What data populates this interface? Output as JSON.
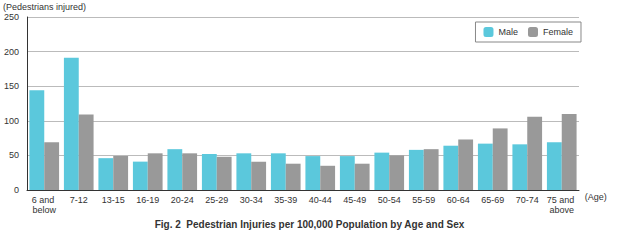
{
  "chart_data": {
    "type": "bar",
    "title": "Fig. 2  Pedestrian Injuries per 100,000 Population by Age and Sex",
    "x_label": "(Age)",
    "y_label": "(Pedestrians injured)",
    "categories": [
      "6 and below",
      "7-12",
      "13-15",
      "16-19",
      "20-24",
      "25-29",
      "30-34",
      "35-39",
      "40-44",
      "45-49",
      "50-54",
      "55-59",
      "60-64",
      "65-69",
      "70-74",
      "75 and above"
    ],
    "series": [
      {
        "name": "Male",
        "color": "#5bc8dc",
        "values": [
          144,
          191,
          46,
          41,
          59,
          52,
          53,
          53,
          49,
          49,
          54,
          58,
          64,
          67,
          66,
          69
        ]
      },
      {
        "name": "Female",
        "color": "#999999",
        "values": [
          69,
          109,
          49,
          53,
          53,
          48,
          41,
          38,
          35,
          38,
          50,
          59,
          73,
          89,
          106,
          110
        ]
      }
    ],
    "ylim": [
      0,
      250
    ],
    "yticks": [
      0,
      50,
      100,
      150,
      200,
      250
    ],
    "grid": true,
    "legend": "top-right"
  }
}
